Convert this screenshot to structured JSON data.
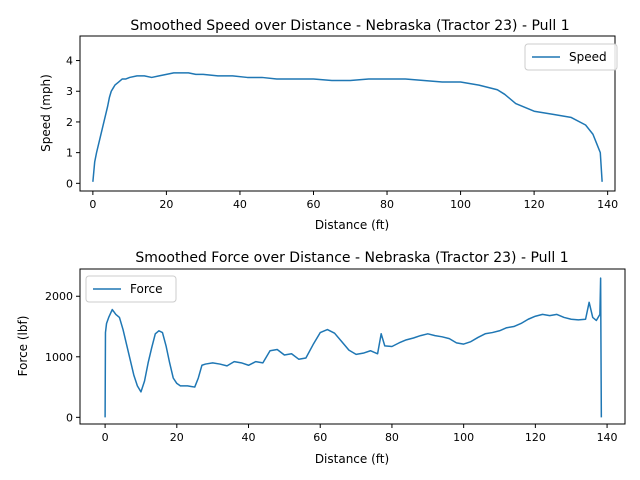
{
  "chart_data": [
    {
      "type": "line",
      "title": "Smoothed Speed over Distance - Nebraska (Tractor 23) - Pull 1",
      "xlabel": "Distance (ft)",
      "ylabel": "Speed (mph)",
      "xlim": [
        -3.5,
        142
      ],
      "ylim": [
        -0.25,
        4.8
      ],
      "xticks": [
        0,
        20,
        40,
        60,
        80,
        100,
        120,
        140
      ],
      "yticks": [
        0,
        1,
        2,
        3,
        4
      ],
      "legend": "top-right",
      "series": [
        {
          "name": "Speed",
          "color": "#1f77b4",
          "x": [
            0,
            0.5,
            1,
            2,
            3,
            4,
            4.5,
            5,
            5.5,
            6,
            7,
            8,
            9,
            10,
            12,
            14,
            16,
            18,
            20,
            22,
            24,
            26,
            28,
            30,
            34,
            38,
            42,
            46,
            50,
            55,
            60,
            65,
            70,
            75,
            80,
            85,
            90,
            95,
            100,
            105,
            110,
            112,
            115,
            120,
            125,
            130,
            134,
            136,
            137,
            138,
            138.5
          ],
          "y": [
            0.05,
            0.7,
            1.0,
            1.5,
            2.0,
            2.5,
            2.8,
            3.0,
            3.1,
            3.2,
            3.3,
            3.4,
            3.4,
            3.45,
            3.5,
            3.5,
            3.45,
            3.5,
            3.55,
            3.6,
            3.6,
            3.6,
            3.55,
            3.55,
            3.5,
            3.5,
            3.45,
            3.45,
            3.4,
            3.4,
            3.4,
            3.35,
            3.35,
            3.4,
            3.4,
            3.4,
            3.35,
            3.3,
            3.3,
            3.2,
            3.05,
            2.9,
            2.6,
            2.35,
            2.25,
            2.15,
            1.9,
            1.6,
            1.3,
            1.0,
            0.05
          ]
        }
      ]
    },
    {
      "type": "line",
      "title": "Smoothed Force over Distance - Nebraska (Tractor 23) - Pull 1",
      "xlabel": "Distance (ft)",
      "ylabel": "Force (lbf)",
      "xlim": [
        -7,
        145
      ],
      "ylim": [
        -110,
        2450
      ],
      "xticks": [
        0,
        20,
        40,
        60,
        80,
        100,
        120,
        140
      ],
      "yticks": [
        0,
        1000,
        2000
      ],
      "legend": "top-left",
      "series": [
        {
          "name": "Force",
          "color": "#1f77b4",
          "x": [
            0,
            0.1,
            0.4,
            1,
            2,
            3,
            4,
            5,
            6,
            7,
            8,
            9,
            10,
            11,
            12,
            13,
            14,
            15,
            16,
            17,
            18,
            19,
            20,
            21,
            22,
            23,
            24,
            25,
            26,
            27,
            28,
            30,
            32,
            34,
            36,
            38,
            40,
            42,
            44,
            46,
            48,
            50,
            52,
            54,
            56,
            58,
            60,
            62,
            64,
            66,
            68,
            70,
            72,
            74,
            76,
            77,
            78,
            80,
            82,
            84,
            86,
            88,
            90,
            92,
            94,
            96,
            98,
            100,
            102,
            104,
            106,
            108,
            110,
            112,
            114,
            116,
            118,
            120,
            122,
            124,
            126,
            128,
            130,
            132,
            134,
            135,
            136,
            137,
            138,
            138.2,
            138.4
          ],
          "y": [
            0,
            1400,
            1550,
            1650,
            1780,
            1700,
            1650,
            1450,
            1200,
            950,
            700,
            520,
            420,
            600,
            900,
            1150,
            1380,
            1430,
            1400,
            1180,
            900,
            650,
            560,
            520,
            520,
            520,
            510,
            500,
            650,
            860,
            880,
            900,
            880,
            850,
            920,
            900,
            860,
            920,
            900,
            1100,
            1120,
            1030,
            1050,
            960,
            980,
            1200,
            1400,
            1450,
            1390,
            1250,
            1110,
            1040,
            1060,
            1100,
            1050,
            1380,
            1180,
            1170,
            1230,
            1280,
            1310,
            1350,
            1380,
            1350,
            1330,
            1300,
            1230,
            1210,
            1250,
            1320,
            1380,
            1400,
            1430,
            1480,
            1500,
            1550,
            1620,
            1670,
            1700,
            1680,
            1700,
            1650,
            1620,
            1610,
            1620,
            1900,
            1650,
            1600,
            1700,
            2300,
            0
          ]
        }
      ]
    }
  ]
}
